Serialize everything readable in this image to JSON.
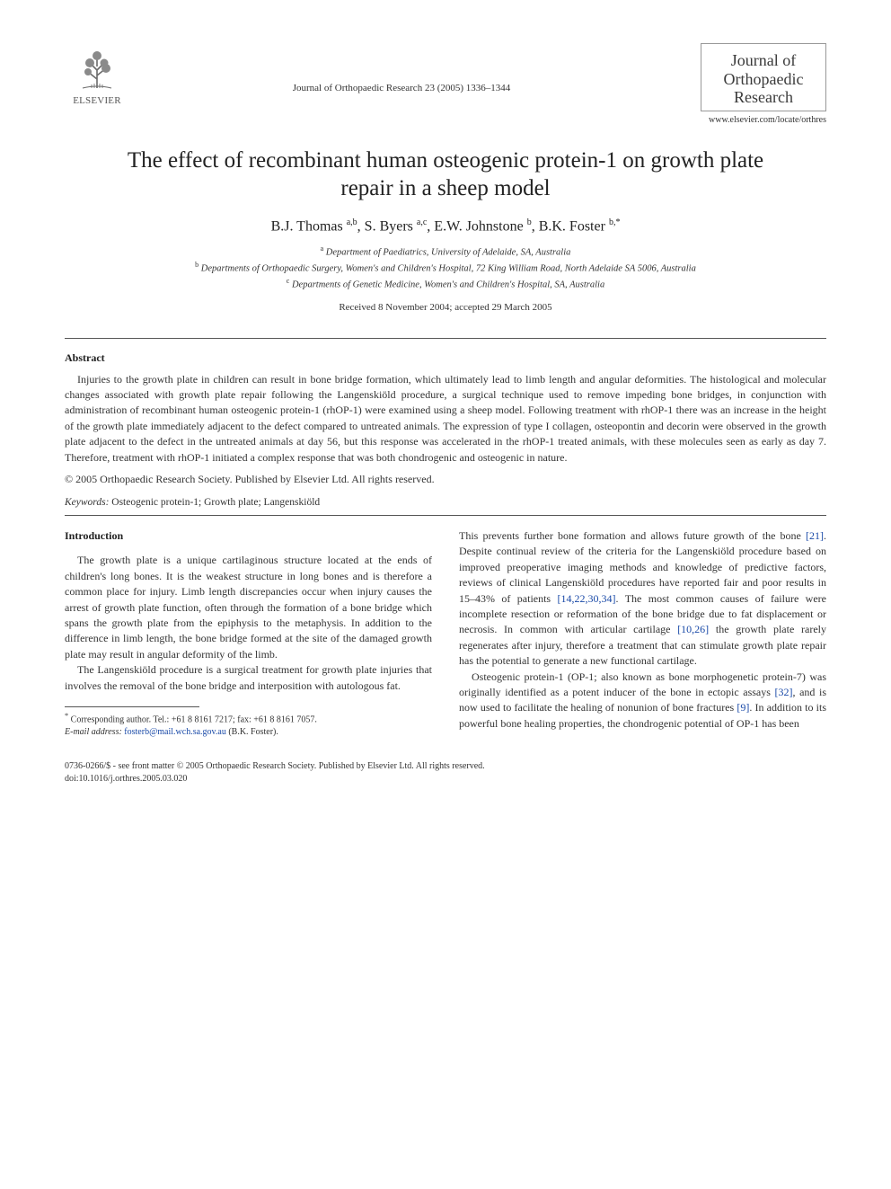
{
  "publisher": {
    "name": "ELSEVIER"
  },
  "journal_ref": "Journal of Orthopaedic Research 23 (2005) 1336–1344",
  "journal_cover_title": "Journal of Orthopaedic Research",
  "journal_url": "www.elsevier.com/locate/orthres",
  "title": "The effect of recombinant human osteogenic protein-1 on growth plate repair in a sheep model",
  "authors_html": "B.J. Thomas <sup>a,b</sup>, S. Byers <sup>a,c</sup>, E.W. Johnstone <sup>b</sup>, B.K. Foster <sup>b,*</sup>",
  "affiliations": {
    "a": "Department of Paediatrics, University of Adelaide, SA, Australia",
    "b": "Departments of Orthopaedic Surgery, Women's and Children's Hospital, 72 King William Road, North Adelaide SA 5006, Australia",
    "c": "Departments of Genetic Medicine, Women's and Children's Hospital, SA, Australia"
  },
  "received": "Received 8 November 2004; accepted 29 March 2005",
  "abstract_heading": "Abstract",
  "abstract": "Injuries to the growth plate in children can result in bone bridge formation, which ultimately lead to limb length and angular deformities. The histological and molecular changes associated with growth plate repair following the Langenskiöld procedure, a surgical technique used to remove impeding bone bridges, in conjunction with administration of recombinant human osteogenic protein-1 (rhOP-1) were examined using a sheep model. Following treatment with rhOP-1 there was an increase in the height of the growth plate immediately adjacent to the defect compared to untreated animals. The expression of type I collagen, osteopontin and decorin were observed in the growth plate adjacent to the defect in the untreated animals at day 56, but this response was accelerated in the rhOP-1 treated animals, with these molecules seen as early as day 7. Therefore, treatment with rhOP-1 initiated a complex response that was both chondrogenic and osteogenic in nature.",
  "copyright": "© 2005 Orthopaedic Research Society. Published by Elsevier Ltd. All rights reserved.",
  "keywords_label": "Keywords:",
  "keywords": "Osteogenic protein-1; Growth plate; Langenskiöld",
  "intro_heading": "Introduction",
  "intro": {
    "p1": "The growth plate is a unique cartilaginous structure located at the ends of children's long bones. It is the weakest structure in long bones and is therefore a common place for injury. Limb length discrepancies occur when injury causes the arrest of growth plate function, often through the formation of a bone bridge which spans the growth plate from the epiphysis to the metaphysis. In addition to the difference in limb length, the bone bridge formed at the site of the damaged growth plate may result in angular deformity of the limb.",
    "p2a": "The Langenskiöld procedure is a surgical treatment for growth plate injuries that involves the removal of the bone bridge and interposition with autologous fat.",
    "p2b_1": "This prevents further bone formation and allows future growth of the bone ",
    "p2b_ref1": "[21]",
    "p2b_2": ". Despite continual review of the criteria for the Langenskiöld procedure based on improved preoperative imaging methods and knowledge of predictive factors, reviews of clinical Langenskiöld procedures have reported fair and poor results in 15–43% of patients ",
    "p2b_ref2": "[14,22,30,34]",
    "p2b_3": ". The most common causes of failure were incomplete resection or reformation of the bone bridge due to fat displacement or necrosis. In common with articular cartilage ",
    "p2b_ref3": "[10,26]",
    "p2b_4": " the growth plate rarely regenerates after injury, therefore a treatment that can stimulate growth plate repair has the potential to generate a new functional cartilage.",
    "p3_1": "Osteogenic protein-1 (OP-1; also known as bone morphogenetic protein-7) was originally identified as a potent inducer of the bone in ectopic assays ",
    "p3_ref1": "[32]",
    "p3_2": ", and is now used to facilitate the healing of nonunion of bone fractures ",
    "p3_ref2": "[9]",
    "p3_3": ". In addition to its powerful bone healing properties, the chondrogenic potential of OP-1 has been"
  },
  "footnote": {
    "line1": "Corresponding author. Tel.: +61 8 8161 7217; fax: +61 8 8161 7057.",
    "line2_label": "E-mail address:",
    "email": "fosterb@mail.wch.sa.gov.au",
    "line2_tail": "(B.K. Foster)."
  },
  "doi": {
    "line1": "0736-0266/$ - see front matter © 2005 Orthopaedic Research Society. Published by Elsevier Ltd. All rights reserved.",
    "line2": "doi:10.1016/j.orthres.2005.03.020"
  },
  "colors": {
    "link": "#1a4aa8",
    "text": "#333333",
    "heading": "#222222",
    "rule": "#555555",
    "background": "#ffffff"
  },
  "fonts": {
    "body_family": "Times New Roman",
    "title_size_pt": 19,
    "author_size_pt": 12,
    "body_size_pt": 9,
    "footnote_size_pt": 7.5
  }
}
